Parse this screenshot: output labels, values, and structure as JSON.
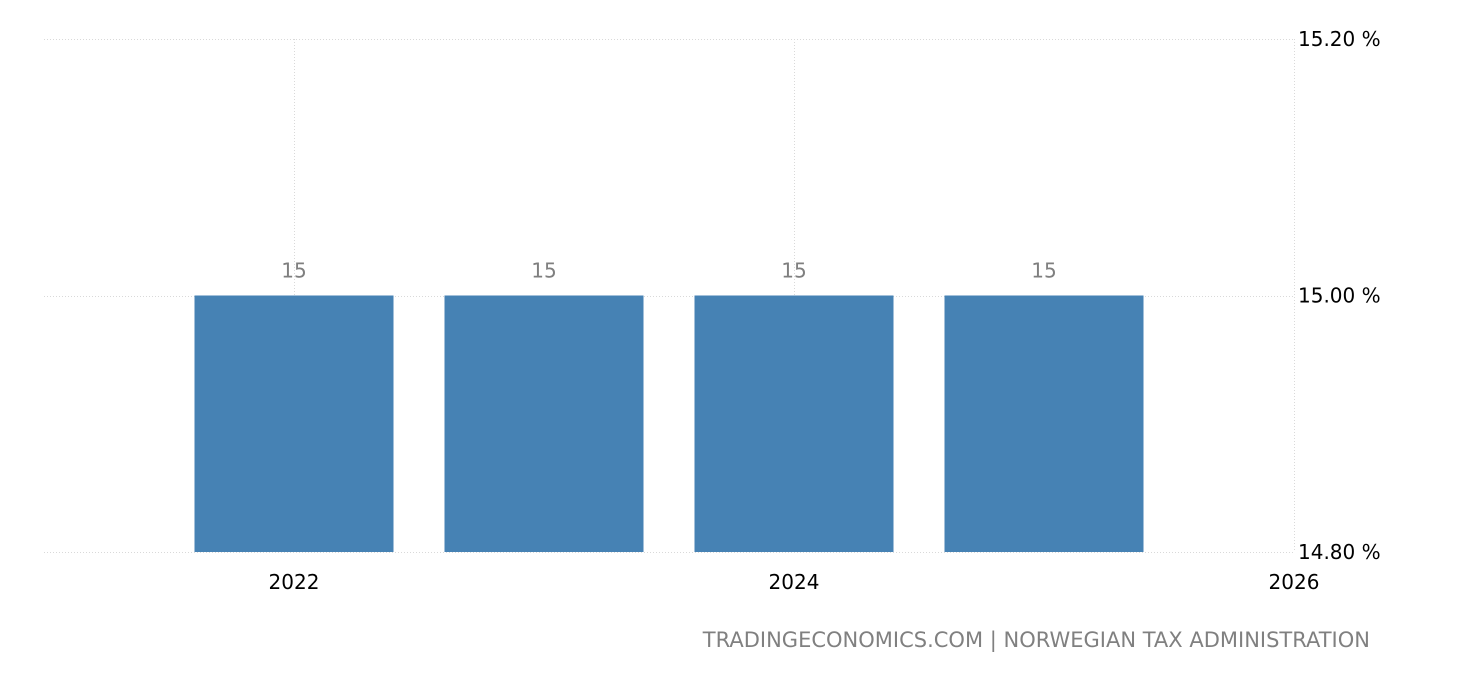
{
  "chart_data": {
    "type": "bar",
    "categories": [
      "2022",
      "2023",
      "2024",
      "2025"
    ],
    "values": [
      15,
      15,
      15,
      15
    ],
    "data_labels": [
      "15",
      "15",
      "15",
      "15"
    ],
    "ylim": [
      14.8,
      15.2
    ],
    "y_ticks": [
      {
        "value": 15.2,
        "label": "15.20 %"
      },
      {
        "value": 15.0,
        "label": "15.00 %"
      },
      {
        "value": 14.8,
        "label": "14.80 %"
      }
    ],
    "x_ticks": [
      {
        "value": 2022,
        "label": "2022"
      },
      {
        "value": 2024,
        "label": "2024"
      },
      {
        "value": 2026,
        "label": "2026"
      }
    ],
    "xlim": [
      2021,
      2026
    ],
    "grid": true,
    "bar_color": "#4682b4",
    "source": "TRADINGECONOMICS.COM | NORWEGIAN TAX ADMINISTRATION"
  }
}
